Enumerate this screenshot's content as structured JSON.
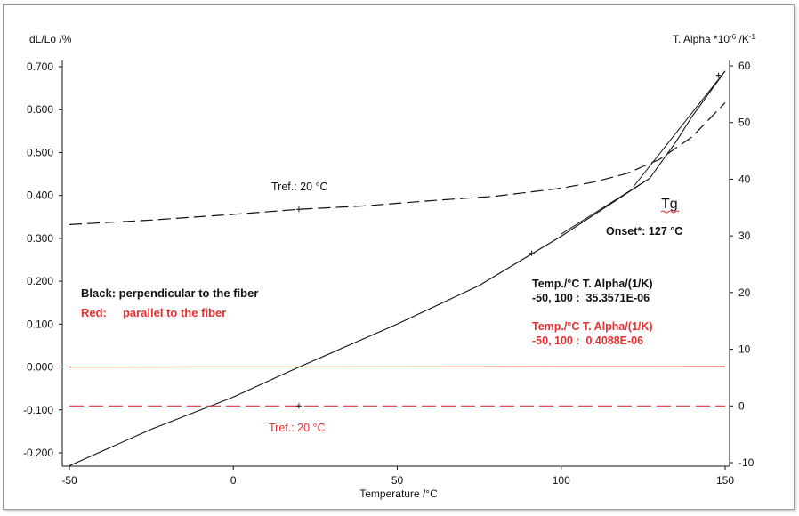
{
  "chart_data": {
    "type": "line",
    "title": "",
    "xlabel": "Temperature /°C",
    "ylabel_left": "dL/Lo /%",
    "ylabel_right": "T. Alpha *10",
    "ylabel_right_sup": "-6",
    "ylabel_right_unit": " /K",
    "ylabel_right_unit_sup": "-1",
    "xlim": [
      -50,
      150
    ],
    "ylim_left": [
      -0.23,
      0.72
    ],
    "ylim_right": [
      -10,
      61
    ],
    "x_ticks": [
      "-50",
      "0",
      "50",
      "100",
      "150"
    ],
    "x_tick_values": [
      -50,
      0,
      50,
      100,
      150
    ],
    "y_left_ticks": [
      "0.700",
      "0.600",
      "0.500",
      "0.400",
      "0.300",
      "0.200",
      "0.100",
      "0.000",
      "-0.100",
      "-0.200"
    ],
    "y_left_tick_values": [
      0.7,
      0.6,
      0.5,
      0.4,
      0.3,
      0.2,
      0.1,
      0.0,
      -0.1,
      -0.2
    ],
    "y_right_ticks": [
      "60",
      "50",
      "40",
      "30",
      "20",
      "10",
      "0",
      "-10"
    ],
    "y_right_tick_values": [
      60,
      50,
      40,
      30,
      20,
      10,
      0,
      -10
    ],
    "grid": false,
    "series": [
      {
        "axis": "left",
        "style": "solid",
        "color": "#111111",
        "x": [
          -50,
          -25,
          0,
          20,
          50,
          75,
          100,
          110,
          120,
          127,
          135,
          140,
          150
        ],
        "y": [
          -0.23,
          -0.145,
          -0.07,
          0.0,
          0.1,
          0.19,
          0.305,
          0.355,
          0.405,
          0.44,
          0.525,
          0.585,
          0.69
        ]
      },
      {
        "axis": "right",
        "style": "dashed",
        "color": "#111111",
        "x": [
          -50,
          -25,
          0,
          20,
          40,
          60,
          80,
          100,
          110,
          120,
          130,
          140,
          150
        ],
        "y": [
          32,
          32.8,
          33.8,
          34.7,
          35.3,
          36.2,
          37.0,
          38.4,
          39.5,
          41.0,
          43.5,
          47.5,
          53.5
        ]
      },
      {
        "axis": "left",
        "style": "solid",
        "color": "#e83030",
        "x": [
          -50,
          150
        ],
        "y": [
          0.0,
          0.001
        ]
      },
      {
        "axis": "right",
        "style": "dashed",
        "color": "#e83030",
        "x": [
          -50,
          150
        ],
        "y": [
          0.0,
          0.0
        ]
      }
    ],
    "onset_tangents": [
      {
        "x": [
          100,
          127
        ],
        "y": [
          0.31,
          0.44
        ]
      },
      {
        "x": [
          122,
          150
        ],
        "y": [
          0.42,
          0.69
        ]
      }
    ],
    "markers": [
      {
        "x": 20,
        "axis": "right",
        "y": 34.7,
        "color": "#111111"
      },
      {
        "x": 20,
        "axis": "right",
        "y": 0.0,
        "color": "#111111"
      },
      {
        "x": 91,
        "axis": "left",
        "y": 0.265,
        "color": "#111111"
      },
      {
        "x": 148,
        "axis": "left",
        "y": 0.68,
        "color": "#111111"
      }
    ],
    "annotations": {
      "tref_black": "Tref.: 20 °C",
      "tref_red": "Tref.: 20 °C",
      "tg": "Tg",
      "onset": "Onset*: 127 °C",
      "legend_black": "Black:  perpendicular to the fiber",
      "legend_red": "Red:     parallel to the fiber",
      "black_table_header": "Temp./°C  T. Alpha/(1/K)",
      "black_table_value": "-50, 100 :  35.3571E-06",
      "red_table_header": "Temp./°C  T. Alpha/(1/K)",
      "red_table_value": "-50, 100 :  0.4088E-06"
    },
    "colors": {
      "black": "#111111",
      "red": "#e83030",
      "frame": "#9a9a9a"
    }
  }
}
